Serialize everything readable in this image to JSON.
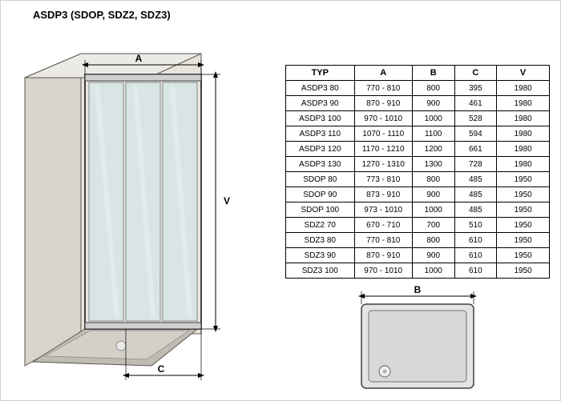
{
  "title": "ASDP3 (SDOP, SDZ2, SDZ3)",
  "schematic": {
    "labels": {
      "A": "A",
      "V": "V",
      "C": "C"
    },
    "colors": {
      "cabinet_fill": "#d8d4cc",
      "cabinet_stroke": "#5a5650",
      "glass_fill": "#cfe6eb",
      "glass_stroke": "#6a7880",
      "frame_fill": "#d0d0d0",
      "frame_stroke": "#404040",
      "floor_fill": "#c0bcb4",
      "tray_fill": "#e0e0e0",
      "arrow_color": "#000000"
    }
  },
  "table": {
    "columns": [
      "TYP",
      "A",
      "B",
      "C",
      "V"
    ],
    "col_widths": [
      "26%",
      "22%",
      "16%",
      "16%",
      "20%"
    ],
    "rows": [
      [
        "ASDP3 80",
        "770 - 810",
        "800",
        "395",
        "1980"
      ],
      [
        "ASDP3 90",
        "870 - 910",
        "900",
        "461",
        "1980"
      ],
      [
        "ASDP3 100",
        "970 - 1010",
        "1000",
        "528",
        "1980"
      ],
      [
        "ASDP3 110",
        "1070 - 1110",
        "1100",
        "594",
        "1980"
      ],
      [
        "ASDP3 120",
        "1170 - 1210",
        "1200",
        "661",
        "1980"
      ],
      [
        "ASDP3 130",
        "1270 - 1310",
        "1300",
        "728",
        "1980"
      ],
      [
        "SDOP 80",
        "773 - 810",
        "800",
        "485",
        "1950"
      ],
      [
        "SDOP 90",
        "873 - 910",
        "900",
        "485",
        "1950"
      ],
      [
        "SDOP 100",
        "973 - 1010",
        "1000",
        "485",
        "1950"
      ],
      [
        "SDZ2 70",
        "670 - 710",
        "700",
        "510",
        "1950"
      ],
      [
        "SDZ3 80",
        "770 - 810",
        "800",
        "610",
        "1950"
      ],
      [
        "SDZ3 90",
        "870 - 910",
        "900",
        "610",
        "1950"
      ],
      [
        "SDZ3 100",
        "970 - 1010",
        "1000",
        "610",
        "1950"
      ]
    ]
  },
  "tray": {
    "label": "B",
    "fill": "#e4e4e4",
    "inner_fill": "#d8d8d8",
    "stroke": "#404040",
    "drain_fill": "#f0f0f0"
  }
}
